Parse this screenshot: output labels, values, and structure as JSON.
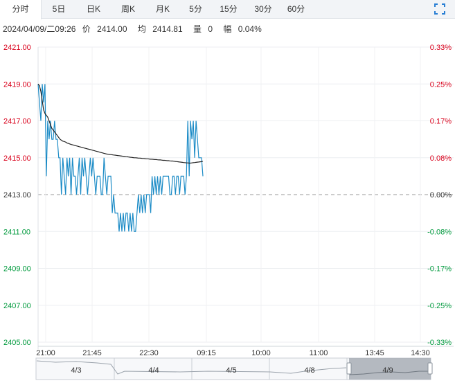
{
  "tabs": [
    {
      "label": "分时",
      "active": true
    },
    {
      "label": "5日"
    },
    {
      "label": "日K"
    },
    {
      "label": "周K"
    },
    {
      "label": "月K"
    },
    {
      "label": "5分"
    },
    {
      "label": "15分"
    },
    {
      "label": "30分"
    },
    {
      "label": "60分"
    }
  ],
  "info": {
    "datetime": "2024/04/09/二09:26",
    "price_label": "价",
    "price": "2414.00",
    "avg_label": "均",
    "avg": "2414.81",
    "vol_label": "量",
    "vol": "0",
    "amp_label": "幅",
    "amp": "0.04%"
  },
  "colors": {
    "up": "#d9001b",
    "down": "#009a3d",
    "price_line": "#1b8bc6",
    "avg_line": "#222222",
    "baseline": "#999999"
  },
  "chart_data": {
    "type": "line",
    "base_price": 2413.0,
    "ylim": [
      2405,
      2421
    ],
    "y_ticks": [
      "2421.00",
      "2419.00",
      "2417.00",
      "2415.00",
      "2413.00",
      "2411.00",
      "2409.00",
      "2407.00",
      "2405.00"
    ],
    "y_ticks_right": [
      "0.33%",
      "0.25%",
      "0.17%",
      "0.08%",
      "0.00%",
      "-0.08%",
      "-0.17%",
      "-0.25%",
      "-0.33%"
    ],
    "x_ticks": [
      "21:00",
      "21:45",
      "22:30",
      "09:15",
      "10:00",
      "11:00",
      "13:45",
      "14:30"
    ],
    "x": [
      0,
      1,
      2,
      3,
      4,
      5,
      6,
      7,
      8,
      9,
      10,
      11,
      12,
      13,
      14,
      15,
      16,
      17,
      18,
      19,
      20,
      21,
      22,
      23,
      24,
      25,
      26,
      27,
      28,
      29,
      30,
      31,
      32,
      33,
      34,
      35,
      36,
      37,
      38,
      39,
      40,
      41,
      42,
      43,
      44,
      45,
      46,
      47,
      48,
      49,
      50,
      51,
      52,
      53,
      54,
      55,
      56,
      57,
      58,
      59,
      60,
      61,
      62,
      63,
      64,
      65,
      66,
      67,
      68,
      69,
      70,
      71,
      72,
      73,
      74,
      75,
      76,
      77,
      78,
      79,
      80,
      81,
      82,
      83,
      84,
      85,
      86,
      87,
      88,
      89,
      90,
      91,
      92,
      93,
      94,
      95,
      96,
      97,
      98,
      99,
      100,
      101,
      102,
      103,
      104,
      105,
      106,
      107,
      108,
      109,
      110,
      111,
      112,
      113,
      114,
      115,
      116,
      117,
      118,
      119,
      120
    ],
    "series": [
      {
        "values": [
          2419,
          2418,
          2417,
          2419,
          2418,
          2419,
          2414,
          2417,
          2416,
          2417,
          2416,
          2416,
          2417,
          2416,
          2416,
          2415,
          2415,
          2413,
          2415,
          2414,
          2413,
          2415,
          2414,
          2415,
          2413,
          2415,
          2414,
          2414,
          2413,
          2414,
          2415,
          2413,
          2415,
          2414,
          2415,
          2414,
          2413,
          2414,
          2415,
          2414,
          2415,
          2414,
          2413,
          2414,
          2414,
          2414,
          2413,
          2413,
          2415,
          2414,
          2413,
          2414,
          2414,
          2414,
          2412,
          2413,
          2412,
          2412,
          2412,
          2411,
          2412,
          2411,
          2412,
          2411,
          2412,
          2412,
          2411,
          2412,
          2411,
          2412,
          2411,
          2411,
          2412,
          2413,
          2412,
          2413,
          2412,
          2413,
          2412,
          2413,
          2413,
          2413,
          2412,
          2414,
          2413,
          2414,
          2413,
          2414,
          2413,
          2414,
          2413,
          2414,
          2414,
          2414,
          2414,
          2414,
          2413,
          2413,
          2414,
          2414,
          2413,
          2414,
          2414,
          2413,
          2414,
          2414,
          2414,
          2413,
          2414,
          2417,
          2414,
          2417,
          2416,
          2417,
          2415,
          2417,
          2416,
          2415,
          2415,
          2415,
          2414
        ]
      },
      {
        "values": [
          2419.0,
          2418.9,
          2418.6,
          2418.1,
          2417.6,
          2417.4,
          2417.3,
          2417.2,
          2417.0,
          2416.8,
          2416.6,
          2416.5,
          2416.4,
          2416.3,
          2416.2,
          2416.1,
          2416.0,
          2415.95,
          2415.9,
          2415.88,
          2415.85,
          2415.8,
          2415.78,
          2415.75,
          2415.72,
          2415.7,
          2415.68,
          2415.66,
          2415.64,
          2415.62,
          2415.6,
          2415.58,
          2415.56,
          2415.54,
          2415.52,
          2415.5,
          2415.48,
          2415.46,
          2415.44,
          2415.42,
          2415.4,
          2415.38,
          2415.36,
          2415.34,
          2415.32,
          2415.3,
          2415.28,
          2415.26,
          2415.24,
          2415.22,
          2415.2,
          2415.19,
          2415.18,
          2415.17,
          2415.16,
          2415.15,
          2415.14,
          2415.13,
          2415.12,
          2415.11,
          2415.1,
          2415.09,
          2415.08,
          2415.07,
          2415.06,
          2415.05,
          2415.04,
          2415.03,
          2415.02,
          2415.01,
          2415.0,
          2415.0,
          2414.99,
          2414.98,
          2414.98,
          2414.97,
          2414.96,
          2414.96,
          2414.95,
          2414.94,
          2414.94,
          2414.93,
          2414.92,
          2414.92,
          2414.91,
          2414.9,
          2414.9,
          2414.89,
          2414.88,
          2414.88,
          2414.87,
          2414.86,
          2414.86,
          2414.85,
          2414.84,
          2414.84,
          2414.83,
          2414.82,
          2414.82,
          2414.81,
          2414.8,
          2414.79,
          2414.78,
          2414.77,
          2414.76,
          2414.75,
          2414.74,
          2414.73,
          2414.72,
          2414.72,
          2414.71,
          2414.71,
          2414.72,
          2414.73,
          2414.74,
          2414.75,
          2414.76,
          2414.77,
          2414.78,
          2414.79,
          2414.81
        ]
      }
    ],
    "navigator": {
      "labels": [
        "4/3",
        "4/4",
        "4/5",
        "4/8",
        "4/9"
      ]
    }
  }
}
